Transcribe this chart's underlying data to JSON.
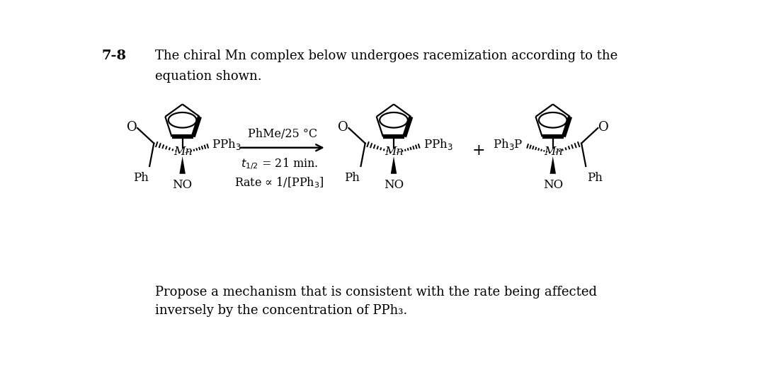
{
  "bg_color": "#ffffff",
  "fig_width": 10.69,
  "fig_height": 5.16,
  "dpi": 100,
  "problem_number": "7-8",
  "header_line1": "The chiral Mn complex below undergoes racemization according to the",
  "header_line2": "equation shown.",
  "condition_line1": "PhMe/25 °C",
  "condition_line2": "$t_{1/2}$ = 21 min.",
  "condition_line3": "Rate ∝ 1/[PPh$_3$]",
  "footer_line1": "Propose a mechanism that is consistent with the rate being affected",
  "footer_line2": "inversely by the concentration of PPh₃.",
  "text_color": "#000000",
  "font_size_header": 13,
  "font_size_body": 12,
  "font_size_label": 12,
  "font_size_number": 14
}
